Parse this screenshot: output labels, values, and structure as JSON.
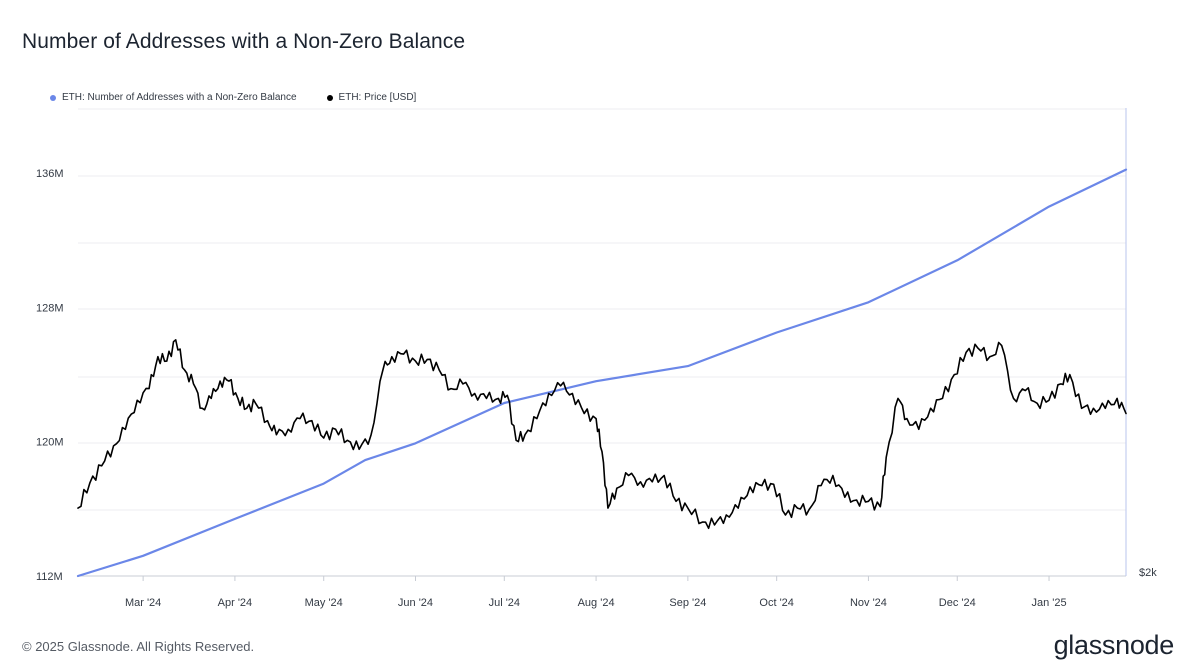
{
  "title": "Number of Addresses with a Non-Zero Balance",
  "legend": [
    {
      "label": "ETH: Number of Addresses with a Non-Zero Balance",
      "color": "#6b87e8"
    },
    {
      "label": "ETH: Price [USD]",
      "color": "#000000"
    }
  ],
  "footer": "© 2025 Glassnode. All Rights Reserved.",
  "logo": "glassnode",
  "chart_data": {
    "type": "line",
    "title": "Number of Addresses with a Non-Zero Balance",
    "grid": true,
    "legend_position": "top-left",
    "x_ticks": [
      "Mar '24",
      "Apr '24",
      "May '24",
      "Jun '24",
      "Jul '24",
      "Aug '24",
      "Sep '24",
      "Oct '24",
      "Nov '24",
      "Dec '24",
      "Jan '25"
    ],
    "x_range": [
      "2024-02-08",
      "2025-01-27"
    ],
    "left_axis": {
      "ticks": [
        "112M",
        "120M",
        "128M",
        "136M"
      ],
      "values": [
        112,
        120,
        128,
        136
      ],
      "range": [
        112,
        136
      ],
      "unit": "M"
    },
    "right_axis": {
      "ticks": [
        "$2k"
      ],
      "scale": "log",
      "range_usd": [
        2000,
        4900
      ]
    },
    "series": [
      {
        "name": "ETH: Number of Addresses with a Non-Zero Balance",
        "axis": "left",
        "color": "#6b87e8",
        "x": [
          "2024-02-08",
          "2024-03-01",
          "2024-04-01",
          "2024-05-01",
          "2024-05-15",
          "2024-06-01",
          "2024-07-01",
          "2024-08-01",
          "2024-09-01",
          "2024-10-01",
          "2024-11-01",
          "2024-12-01",
          "2025-01-01",
          "2025-01-27"
        ],
        "values": [
          112.0,
          113.2,
          115.4,
          117.5,
          118.9,
          119.9,
          122.3,
          123.6,
          124.5,
          126.5,
          128.3,
          130.8,
          134.0,
          136.2
        ]
      },
      {
        "name": "ETH: Price [USD]",
        "axis": "right",
        "color": "#000000",
        "x": [
          "2024-02-08",
          "2024-02-12",
          "2024-02-16",
          "2024-02-20",
          "2024-02-24",
          "2024-02-28",
          "2024-03-03",
          "2024-03-06",
          "2024-03-09",
          "2024-03-12",
          "2024-03-15",
          "2024-03-18",
          "2024-03-21",
          "2024-03-24",
          "2024-03-27",
          "2024-03-30",
          "2024-04-02",
          "2024-04-05",
          "2024-04-08",
          "2024-04-12",
          "2024-04-15",
          "2024-04-19",
          "2024-04-23",
          "2024-04-27",
          "2024-05-01",
          "2024-05-05",
          "2024-05-09",
          "2024-05-13",
          "2024-05-17",
          "2024-05-21",
          "2024-05-24",
          "2024-05-28",
          "2024-06-01",
          "2024-06-05",
          "2024-06-09",
          "2024-06-13",
          "2024-06-17",
          "2024-06-21",
          "2024-06-25",
          "2024-06-29",
          "2024-07-02",
          "2024-07-05",
          "2024-07-08",
          "2024-07-12",
          "2024-07-16",
          "2024-07-20",
          "2024-07-24",
          "2024-07-28",
          "2024-08-01",
          "2024-08-03",
          "2024-08-05",
          "2024-08-08",
          "2024-08-12",
          "2024-08-16",
          "2024-08-20",
          "2024-08-24",
          "2024-08-28",
          "2024-09-01",
          "2024-09-06",
          "2024-09-10",
          "2024-09-14",
          "2024-09-18",
          "2024-09-22",
          "2024-09-26",
          "2024-09-30",
          "2024-10-04",
          "2024-10-08",
          "2024-10-12",
          "2024-10-16",
          "2024-10-20",
          "2024-10-24",
          "2024-10-28",
          "2024-11-01",
          "2024-11-05",
          "2024-11-07",
          "2024-11-11",
          "2024-11-14",
          "2024-11-18",
          "2024-11-22",
          "2024-11-26",
          "2024-11-30",
          "2024-12-04",
          "2024-12-08",
          "2024-12-12",
          "2024-12-16",
          "2024-12-20",
          "2024-12-24",
          "2024-12-28",
          "2025-01-01",
          "2025-01-05",
          "2025-01-08",
          "2025-01-12",
          "2025-01-16",
          "2025-01-20",
          "2025-01-24",
          "2025-01-27"
        ],
        "values": [
          2450,
          2640,
          2780,
          2950,
          3100,
          3380,
          3500,
          3850,
          3800,
          4050,
          3700,
          3550,
          3300,
          3400,
          3580,
          3580,
          3400,
          3300,
          3350,
          3180,
          3050,
          3100,
          3200,
          3180,
          3020,
          3100,
          3000,
          2920,
          3050,
          3700,
          3850,
          3880,
          3800,
          3820,
          3700,
          3500,
          3550,
          3450,
          3400,
          3400,
          3430,
          3000,
          3050,
          3200,
          3450,
          3530,
          3450,
          3250,
          3200,
          2900,
          2450,
          2600,
          2700,
          2650,
          2650,
          2700,
          2500,
          2450,
          2350,
          2330,
          2400,
          2450,
          2610,
          2620,
          2630,
          2400,
          2450,
          2440,
          2620,
          2700,
          2530,
          2510,
          2500,
          2460,
          2850,
          3400,
          3200,
          3100,
          3300,
          3400,
          3650,
          3900,
          3950,
          3850,
          3980,
          3400,
          3480,
          3350,
          3380,
          3550,
          3650,
          3300,
          3300,
          3300,
          3400,
          3250
        ]
      }
    ]
  }
}
